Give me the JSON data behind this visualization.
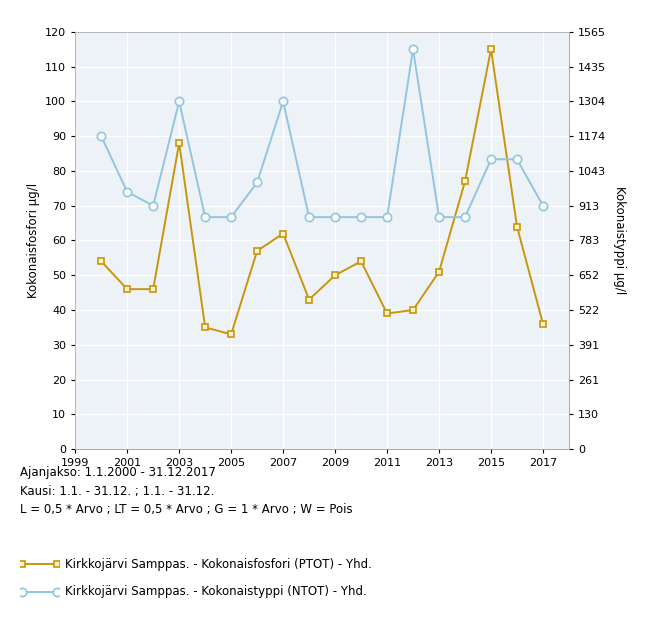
{
  "years": [
    2000,
    2001,
    2002,
    2003,
    2004,
    2005,
    2006,
    2007,
    2008,
    2009,
    2010,
    2011,
    2012,
    2013,
    2014,
    2015,
    2016,
    2017
  ],
  "ptot": [
    54,
    46,
    46,
    88,
    35,
    33,
    57,
    62,
    43,
    50,
    54,
    39,
    40,
    51,
    77,
    115,
    64,
    36
  ],
  "ntot": [
    1174,
    965,
    913,
    1304,
    870,
    870,
    1000,
    1304,
    870,
    870,
    870,
    870,
    1500,
    870,
    870,
    1087,
    1087,
    913
  ],
  "ptot_color": "#C8960C",
  "ntot_color": "#92C5DE",
  "fig_bg": "#ffffff",
  "plot_bg": "#edf2f7",
  "left_ylabel": "Kokonaisfosfori μg/l",
  "right_ylabel": "Kokonaistyppi μg/l",
  "xlim": [
    1999,
    2018
  ],
  "ylim_left": [
    0,
    120
  ],
  "ylim_right": [
    0,
    1565
  ],
  "xticks": [
    1999,
    2001,
    2003,
    2005,
    2007,
    2009,
    2011,
    2013,
    2015,
    2017
  ],
  "yticks_left": [
    0,
    10,
    20,
    30,
    40,
    50,
    60,
    70,
    80,
    90,
    100,
    110,
    120
  ],
  "yticks_right": [
    0,
    130,
    261,
    391,
    522,
    652,
    783,
    913,
    1043,
    1174,
    1304,
    1435,
    1565
  ],
  "annotation": "Ajanjakso: 1.1.2000 - 31.12.2017\nKausi: 1.1. - 31.12. ; 1.1. - 31.12.\nL = 0,5 * Arvo ; LT = 0,5 * Arvo ; G = 1 * Arvo ; W = Pois",
  "legend_ptot": "Kirkkojärvi Samppas. - Kokonaisfosfori (PTOT) - Yhd.",
  "legend_ntot": "Kirkkojärvi Samppas. - Kokonaistyppi (NTOT) - Yhd."
}
